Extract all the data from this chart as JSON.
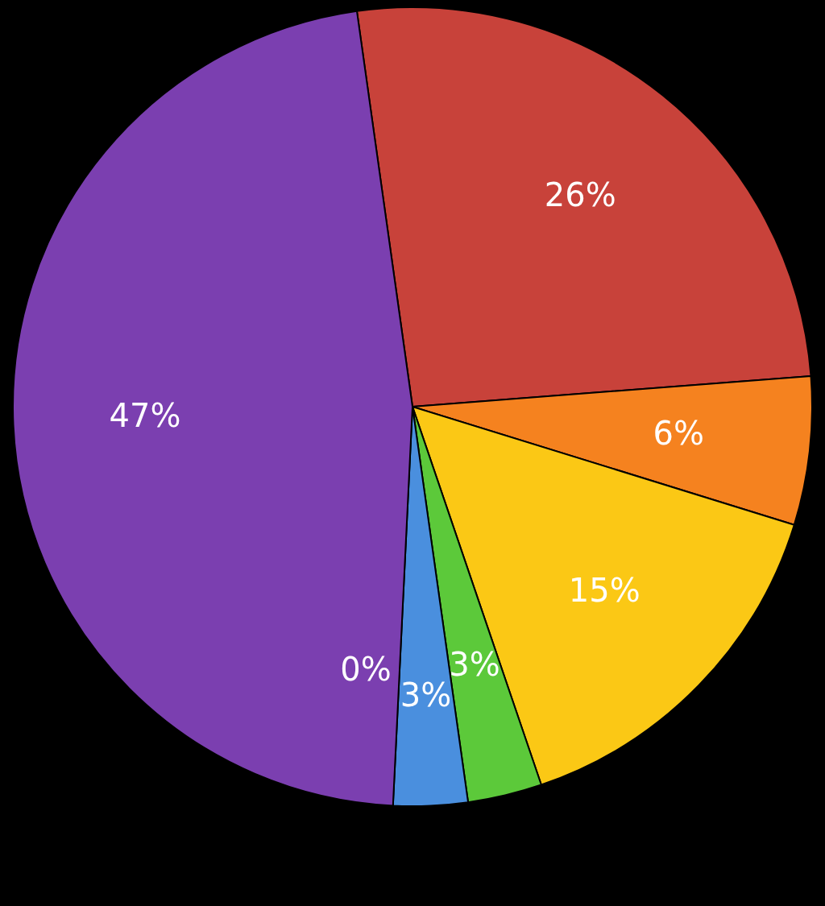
{
  "chart_data": {
    "type": "pie",
    "categories": [
      null,
      null,
      null,
      null,
      null,
      null,
      null
    ],
    "values": [
      26,
      6,
      15,
      3,
      3,
      0,
      47
    ],
    "colors": [
      "#c8423a",
      "#f5821f",
      "#fbc815",
      "#5cc93a",
      "#4a8fde",
      "#5b9ad6",
      "#7b3fb0"
    ],
    "value_labels": [
      "26%",
      "6%",
      "15%",
      "3%",
      "3%",
      "0%",
      "47%"
    ]
  }
}
